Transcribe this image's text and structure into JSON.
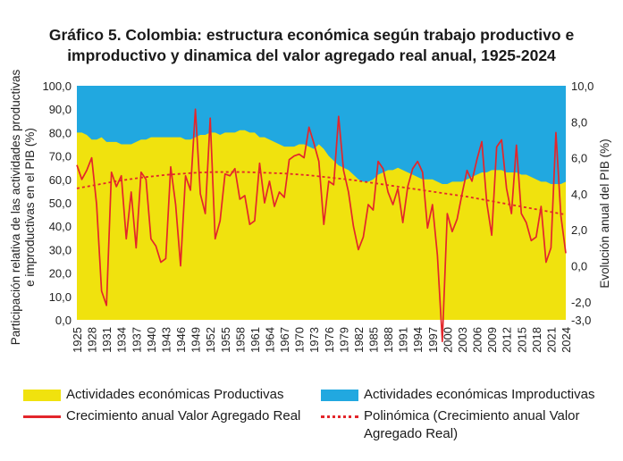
{
  "title_line1": "Gráfico 5. Colombia: estructura económica según trabajo productivo e",
  "title_line2": "improductivo y dinamica del valor agregado real anual, 1925-2024",
  "colors": {
    "productive": "#f0e20e",
    "unproductive": "#21a8e0",
    "growth_line": "#e3262b",
    "trend_line": "#e3262b"
  },
  "chart_data": {
    "type": "area",
    "x": [
      1925,
      1926,
      1927,
      1928,
      1929,
      1930,
      1931,
      1932,
      1933,
      1934,
      1935,
      1936,
      1937,
      1938,
      1939,
      1940,
      1941,
      1942,
      1943,
      1944,
      1945,
      1946,
      1947,
      1948,
      1949,
      1950,
      1951,
      1952,
      1953,
      1954,
      1955,
      1956,
      1957,
      1958,
      1959,
      1960,
      1961,
      1962,
      1963,
      1964,
      1965,
      1966,
      1967,
      1968,
      1969,
      1970,
      1971,
      1972,
      1973,
      1974,
      1975,
      1976,
      1977,
      1978,
      1979,
      1980,
      1981,
      1982,
      1983,
      1984,
      1985,
      1986,
      1987,
      1988,
      1989,
      1990,
      1991,
      1992,
      1993,
      1994,
      1995,
      1996,
      1997,
      1998,
      1999,
      2000,
      2001,
      2002,
      2003,
      2004,
      2005,
      2006,
      2007,
      2008,
      2009,
      2010,
      2011,
      2012,
      2013,
      2014,
      2015,
      2016,
      2017,
      2018,
      2019,
      2020,
      2021,
      2022,
      2023,
      2024
    ],
    "x_tick_labels": [
      "1925",
      "1928",
      "1931",
      "1934",
      "1937",
      "1940",
      "1943",
      "1946",
      "1949",
      "1952",
      "1955",
      "1958",
      "1961",
      "1964",
      "1967",
      "1970",
      "1973",
      "1976",
      "1979",
      "1982",
      "1985",
      "1988",
      "1991",
      "1994",
      "1997",
      "2000",
      "2003",
      "2006",
      "2009",
      "2012",
      "2015",
      "2018",
      "2021",
      "2024"
    ],
    "series": [
      {
        "name": "Actividades económicas Productivas",
        "axis": "left",
        "type": "area",
        "values": [
          80,
          80,
          79,
          77,
          77,
          78,
          76,
          76,
          76,
          75,
          75,
          75,
          76,
          77,
          77,
          78,
          78,
          78,
          78,
          78,
          78,
          78,
          77,
          77,
          78,
          79,
          79,
          80,
          80,
          79,
          80,
          80,
          80,
          81,
          81,
          80,
          80,
          78,
          78,
          77,
          76,
          75,
          74,
          74,
          74,
          75,
          75,
          74,
          73,
          75,
          73,
          70,
          68,
          66,
          65,
          64,
          62,
          60,
          59,
          59,
          60,
          62,
          63,
          64,
          64,
          65,
          64,
          63,
          62,
          61,
          60,
          60,
          60,
          59,
          58,
          58,
          59,
          59,
          59,
          60,
          61,
          62,
          63,
          63,
          64,
          64,
          64,
          63,
          63,
          63,
          62,
          62,
          61,
          60,
          59,
          59,
          58,
          58,
          58,
          59
        ]
      },
      {
        "name": "Actividades económicas Improductivas",
        "axis": "left",
        "type": "area",
        "values": [
          20,
          20,
          21,
          23,
          23,
          22,
          24,
          24,
          24,
          25,
          25,
          25,
          24,
          23,
          23,
          22,
          22,
          22,
          22,
          22,
          22,
          22,
          23,
          23,
          22,
          21,
          21,
          20,
          20,
          21,
          20,
          20,
          20,
          19,
          19,
          20,
          20,
          22,
          22,
          23,
          24,
          25,
          26,
          26,
          26,
          25,
          25,
          26,
          27,
          25,
          27,
          30,
          32,
          34,
          35,
          36,
          38,
          40,
          41,
          41,
          40,
          38,
          37,
          36,
          36,
          35,
          36,
          37,
          38,
          39,
          40,
          40,
          40,
          41,
          42,
          42,
          41,
          41,
          41,
          40,
          39,
          38,
          37,
          37,
          36,
          36,
          36,
          37,
          37,
          37,
          38,
          38,
          39,
          40,
          41,
          41,
          42,
          42,
          42,
          41
        ]
      },
      {
        "name": "Crecimiento anual Valor Agregado Real",
        "axis": "right",
        "type": "line",
        "values": [
          5.6,
          4.8,
          5.3,
          6.0,
          3.4,
          -1.4,
          -2.2,
          5.2,
          4.4,
          5.0,
          1.5,
          4.1,
          1.0,
          5.2,
          4.8,
          1.5,
          1.1,
          0.2,
          0.4,
          5.5,
          3.4,
          0.0,
          5.0,
          4.2,
          8.7,
          4.0,
          2.9,
          8.2,
          1.5,
          2.5,
          5.1,
          5.0,
          5.4,
          3.7,
          3.9,
          2.3,
          2.5,
          5.7,
          3.5,
          4.7,
          3.3,
          4.1,
          3.8,
          5.9,
          6.1,
          6.2,
          6.0,
          7.7,
          6.8,
          5.8,
          2.3,
          4.7,
          4.5,
          8.3,
          5.3,
          4.1,
          2.2,
          0.9,
          1.6,
          3.4,
          3.1,
          5.8,
          5.4,
          4.1,
          3.4,
          4.3,
          2.4,
          4.4,
          5.4,
          5.8,
          5.2,
          2.1,
          3.4,
          0.6,
          -4.2,
          2.9,
          1.9,
          2.6,
          4.0,
          5.3,
          4.7,
          5.9,
          6.9,
          3.5,
          1.7,
          6.6,
          7.0,
          4.3,
          2.9,
          6.7,
          2.9,
          2.4,
          1.4,
          1.6,
          3.3,
          0.2,
          1.0,
          7.4,
          2.8,
          0.7
        ]
      },
      {
        "name": "Polinómica (Crecimiento anual Valor Agregado Real)",
        "axis": "right",
        "type": "line",
        "style": "dashed",
        "values": [
          4.3,
          4.35,
          4.4,
          4.45,
          4.5,
          4.55,
          4.6,
          4.65,
          4.7,
          4.74,
          4.78,
          4.82,
          4.86,
          4.9,
          4.93,
          4.96,
          4.99,
          5.02,
          5.05,
          5.07,
          5.09,
          5.11,
          5.13,
          5.15,
          5.17,
          5.18,
          5.19,
          5.2,
          5.21,
          5.21,
          5.21,
          5.21,
          5.21,
          5.21,
          5.21,
          5.2,
          5.19,
          5.18,
          5.17,
          5.16,
          5.15,
          5.14,
          5.13,
          5.11,
          5.09,
          5.07,
          5.05,
          5.03,
          5.0,
          4.97,
          4.94,
          4.91,
          4.88,
          4.85,
          4.82,
          4.79,
          4.76,
          4.72,
          4.68,
          4.64,
          4.6,
          4.56,
          4.52,
          4.48,
          4.44,
          4.4,
          4.36,
          4.32,
          4.28,
          4.24,
          4.2,
          4.16,
          4.12,
          4.08,
          4.04,
          4.0,
          3.96,
          3.92,
          3.88,
          3.84,
          3.79,
          3.74,
          3.69,
          3.64,
          3.59,
          3.54,
          3.49,
          3.44,
          3.39,
          3.34,
          3.29,
          3.24,
          3.19,
          3.14,
          3.09,
          3.04,
          2.99,
          2.94,
          2.89,
          2.85
        ]
      }
    ],
    "left_axis": {
      "label": "Participación relativa de las actividades productivas e improductivas en el PIB (%)",
      "range": [
        0,
        100
      ],
      "tick_labels": [
        "0,0",
        "10,0",
        "20,0",
        "30,0",
        "40,0",
        "50,0",
        "60,0",
        "70,0",
        "80,0",
        "90,0",
        "100,0"
      ]
    },
    "right_axis": {
      "label": "Evolución anual del PIB (%)",
      "range": [
        -3,
        10
      ],
      "tick_labels": [
        "-3,0",
        "-2,0",
        "0,0",
        "2,0",
        "4,0",
        "6,0",
        "8,0",
        "10,0"
      ]
    },
    "legend": {
      "placement": "bottom",
      "items": [
        {
          "label": "Actividades económicas Productivas",
          "marker": "box",
          "color": "#f0e20e"
        },
        {
          "label": "Actividades económicas Improductivas",
          "marker": "box",
          "color": "#21a8e0"
        },
        {
          "label": "Crecimiento anual Valor Agregado Real",
          "marker": "line",
          "color": "#e3262b"
        },
        {
          "label": "Polinómica (Crecimiento anual Valor Agregado Real)",
          "marker": "dashed",
          "color": "#e3262b"
        }
      ]
    }
  }
}
